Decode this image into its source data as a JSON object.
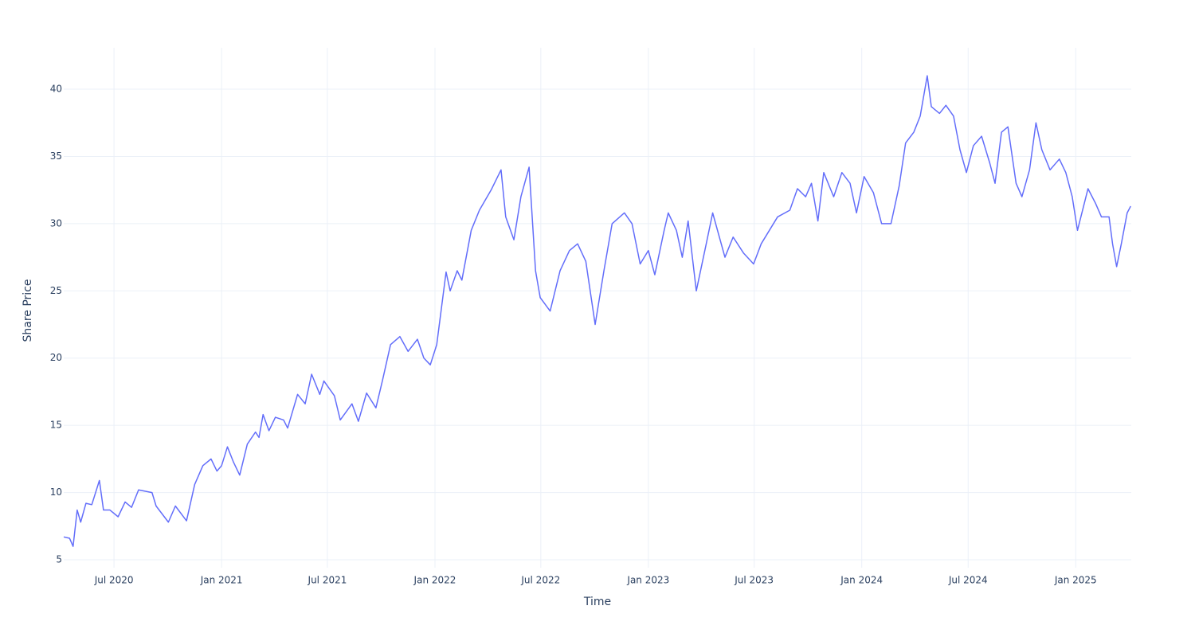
{
  "chart_data": {
    "type": "line",
    "x_title": "Time",
    "y_title": "Share Price",
    "x": [
      "2020-04-06",
      "2020-04-16",
      "2020-04-22",
      "2020-04-29",
      "2020-05-05",
      "2020-05-14",
      "2020-05-24",
      "2020-06-06",
      "2020-06-13",
      "2020-06-24",
      "2020-07-08",
      "2020-07-20",
      "2020-07-31",
      "2020-08-12",
      "2020-09-04",
      "2020-09-11",
      "2020-10-02",
      "2020-10-14",
      "2020-11-02",
      "2020-11-16",
      "2020-11-30",
      "2020-12-14",
      "2020-12-24",
      "2021-01-01",
      "2021-01-11",
      "2021-01-21",
      "2021-02-01",
      "2021-02-14",
      "2021-02-28",
      "2021-03-06",
      "2021-03-13",
      "2021-03-23",
      "2021-04-03",
      "2021-04-17",
      "2021-04-24",
      "2021-05-11",
      "2021-05-24",
      "2021-06-04",
      "2021-06-18",
      "2021-06-25",
      "2021-07-13",
      "2021-07-23",
      "2021-08-12",
      "2021-08-23",
      "2021-09-06",
      "2021-09-22",
      "2021-10-03",
      "2021-10-17",
      "2021-11-02",
      "2021-11-16",
      "2021-12-02",
      "2021-12-13",
      "2021-12-24",
      "2022-01-04",
      "2022-01-12",
      "2022-01-20",
      "2022-01-27",
      "2022-02-08",
      "2022-02-16",
      "2022-03-04",
      "2022-03-18",
      "2022-04-07",
      "2022-04-24",
      "2022-05-02",
      "2022-05-16",
      "2022-05-28",
      "2022-06-11",
      "2022-06-22",
      "2022-06-30",
      "2022-07-17",
      "2022-08-03",
      "2022-08-19",
      "2022-09-02",
      "2022-09-16",
      "2022-10-02",
      "2022-10-17",
      "2022-10-31",
      "2022-11-21",
      "2022-12-04",
      "2022-12-18",
      "2023-01-01",
      "2023-01-12",
      "2023-01-28",
      "2023-02-04",
      "2023-02-18",
      "2023-02-28",
      "2023-03-10",
      "2023-03-24",
      "2023-04-10",
      "2023-04-21",
      "2023-05-12",
      "2023-05-26",
      "2023-06-13",
      "2023-06-30",
      "2023-07-13",
      "2023-07-27",
      "2023-08-10",
      "2023-08-31",
      "2023-09-13",
      "2023-09-27",
      "2023-10-07",
      "2023-10-18",
      "2023-10-28",
      "2023-11-14",
      "2023-11-28",
      "2023-12-12",
      "2023-12-23",
      "2024-01-05",
      "2024-01-21",
      "2024-02-04",
      "2024-02-20",
      "2024-03-05",
      "2024-03-16",
      "2024-03-30",
      "2024-04-10",
      "2024-04-22",
      "2024-04-29",
      "2024-05-13",
      "2024-05-24",
      "2024-06-06",
      "2024-06-17",
      "2024-06-28",
      "2024-07-10",
      "2024-07-24",
      "2024-08-07",
      "2024-08-16",
      "2024-08-27",
      "2024-09-07",
      "2024-09-21",
      "2024-10-01",
      "2024-10-14",
      "2024-10-25",
      "2024-11-04",
      "2024-11-18",
      "2024-12-04",
      "2024-12-15",
      "2024-12-26",
      "2025-01-04",
      "2025-01-22",
      "2025-02-04",
      "2025-02-14",
      "2025-02-27",
      "2025-03-05",
      "2025-03-12",
      "2025-03-20",
      "2025-03-30",
      "2025-04-05"
    ],
    "series": [
      {
        "name": "Share Price",
        "color": "#636efa",
        "values": [
          6.7,
          6.6,
          6.0,
          8.7,
          7.8,
          9.2,
          9.1,
          10.9,
          8.7,
          8.7,
          8.2,
          9.3,
          8.9,
          10.2,
          10.0,
          9.0,
          7.8,
          9.0,
          7.9,
          10.6,
          12.0,
          12.5,
          11.6,
          12.0,
          13.4,
          12.3,
          11.3,
          13.6,
          14.5,
          14.1,
          15.8,
          14.6,
          15.6,
          15.4,
          14.8,
          17.3,
          16.6,
          18.8,
          17.3,
          18.3,
          17.2,
          15.4,
          16.6,
          15.3,
          17.4,
          16.3,
          18.3,
          21.0,
          21.6,
          20.5,
          21.4,
          20.0,
          19.5,
          21.0,
          23.7,
          26.4,
          25.0,
          26.5,
          25.8,
          29.5,
          31.0,
          32.5,
          34.0,
          30.5,
          28.8,
          32.0,
          34.2,
          26.5,
          24.5,
          23.5,
          26.5,
          28.0,
          28.5,
          27.2,
          22.5,
          26.5,
          30.0,
          30.8,
          30.0,
          27.0,
          28.0,
          26.2,
          29.5,
          30.8,
          29.5,
          27.5,
          30.2,
          25.0,
          28.5,
          30.8,
          27.5,
          29.0,
          27.8,
          27.0,
          28.5,
          29.5,
          30.5,
          31.0,
          32.6,
          32.0,
          33.0,
          30.2,
          33.8,
          32.0,
          33.8,
          33.0,
          30.8,
          33.5,
          32.3,
          30.0,
          30.0,
          32.8,
          36.0,
          36.8,
          38.0,
          41.0,
          38.7,
          38.2,
          38.8,
          38.0,
          35.5,
          33.8,
          35.8,
          36.5,
          34.5,
          33.0,
          36.8,
          37.2,
          33.0,
          32.0,
          34.0,
          37.5,
          35.5,
          34.0,
          34.8,
          33.8,
          32.0,
          29.5,
          32.6,
          31.5,
          30.5,
          30.5,
          28.5,
          26.8,
          28.5,
          30.8,
          31.3
        ]
      }
    ],
    "xlim": [
      "2020-04-06",
      "2025-04-06"
    ],
    "xticks": [
      {
        "value": "2020-07-01",
        "label": "Jul 2020"
      },
      {
        "value": "2021-01-01",
        "label": "Jan 2021"
      },
      {
        "value": "2021-07-01",
        "label": "Jul 2021"
      },
      {
        "value": "2022-01-01",
        "label": "Jan 2022"
      },
      {
        "value": "2022-07-01",
        "label": "Jul 2022"
      },
      {
        "value": "2023-01-01",
        "label": "Jan 2023"
      },
      {
        "value": "2023-07-01",
        "label": "Jul 2023"
      },
      {
        "value": "2024-01-01",
        "label": "Jan 2024"
      },
      {
        "value": "2024-07-01",
        "label": "Jul 2024"
      },
      {
        "value": "2025-01-01",
        "label": "Jan 2025"
      }
    ],
    "ylim": [
      4.41,
      43.08
    ],
    "yticks": [
      5,
      10,
      15,
      20,
      25,
      30,
      35,
      40
    ],
    "grid": true
  }
}
